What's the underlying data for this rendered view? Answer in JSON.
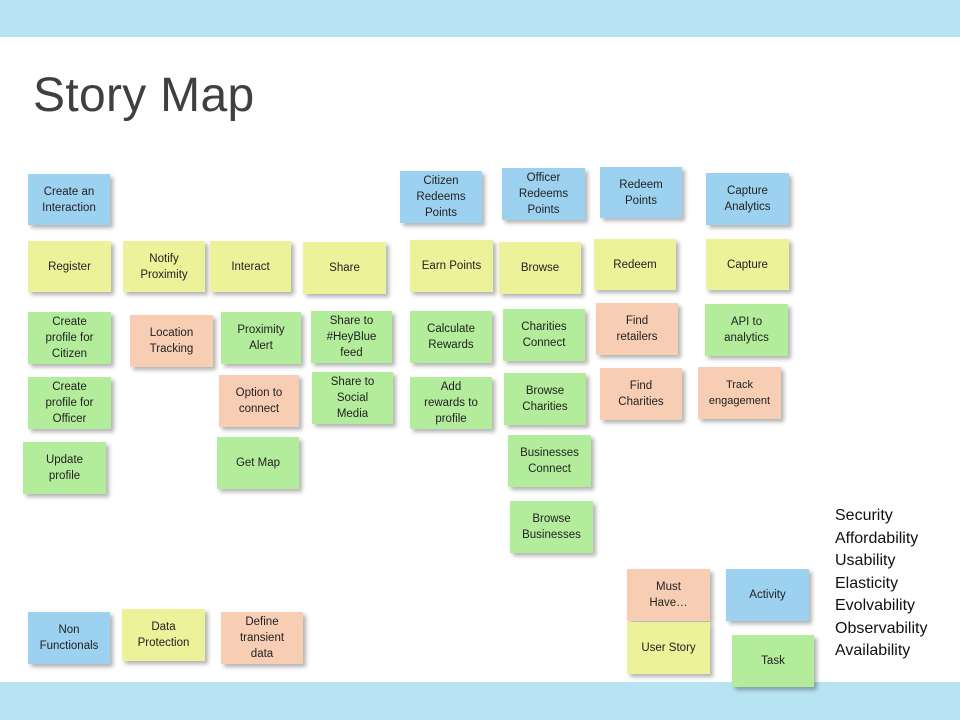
{
  "slide": {
    "title": "Story Map"
  },
  "colors": {
    "band": "#b7e3f3",
    "activity": "#9dd1f0",
    "user_story": "#ebf29a",
    "task": "#b3ec9b",
    "must_have": "#f7ceb3"
  },
  "notes": {
    "create_interaction": "Create an\nInteraction",
    "citizen_redeems": "Citizen\nRedeems\nPoints",
    "officer_redeems": "Officer\nRedeems\nPoints",
    "redeem_points": "Redeem\nPoints",
    "capture_analytics": "Capture\nAnalytics",
    "register": "Register",
    "notify_proximity": "Notify\nProximity",
    "interact": "Interact",
    "share": "Share",
    "earn_points": "Earn Points",
    "browse": "Browse",
    "redeem": "Redeem",
    "capture": "Capture",
    "create_profile_citizen": "Create\nprofile for\nCitizen",
    "location_tracking": "Location\nTracking",
    "proximity_alert": "Proximity\nAlert",
    "share_heyblue": "Share to\n#HeyBlue\nfeed",
    "calculate_rewards": "Calculate\nRewards",
    "charities_connect": "Charities\nConnect",
    "find_retailers": "Find\nretailers",
    "api_analytics": "API to\nanalytics",
    "create_profile_officer": "Create\nprofile for\nOfficer",
    "option_connect": "Option to\nconnect",
    "share_social": "Share to\nSocial\nMedia",
    "add_rewards": "Add\nrewards to\nprofile",
    "browse_charities": "Browse\nCharities",
    "find_charities": "Find\nCharities",
    "track_engagement": "Track\nengagement",
    "update_profile": "Update\nprofile",
    "get_map": "Get Map",
    "businesses_connect": "Businesses\nConnect",
    "browse_businesses": "Browse\nBusinesses",
    "non_functionals": "Non\nFunctionals",
    "data_protection": "Data\nProtection",
    "define_transient": "Define\ntransient\ndata"
  },
  "legend": {
    "must_have": "Must\nHave…",
    "activity": "Activity",
    "user_story": "User Story",
    "task": "Task"
  },
  "non_functionals": [
    "Security",
    "Affordability",
    "Usability",
    "Elasticity",
    "Evolvability",
    "Observability",
    "Availability"
  ]
}
